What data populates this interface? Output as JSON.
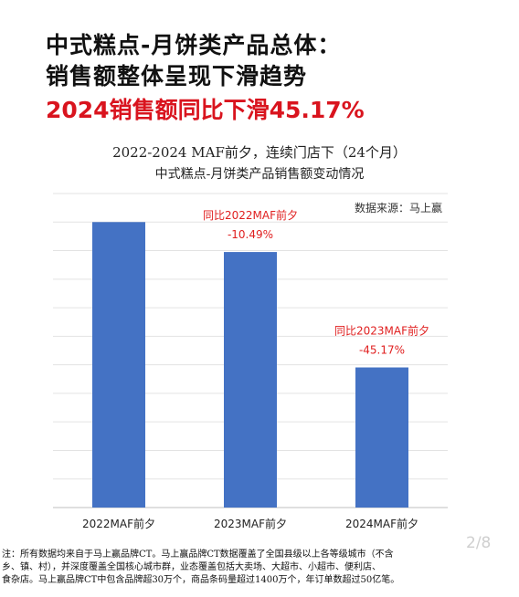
{
  "headline": {
    "line1": "中式糕点-月饼类产品总体：",
    "line2": "销售额整体呈现下滑趋势",
    "line3": "2024销售额同比下滑45.17%"
  },
  "chart_data": {
    "type": "bar",
    "title": "2022-2024 MAF前夕，连续门店下（24个月）",
    "subtitle": "中式糕点-月饼类产品销售额变动情况",
    "source": "数据来源：马上赢",
    "categories": [
      "2022MAF前夕",
      "2023MAF前夕",
      "2024MAF前夕"
    ],
    "values": [
      100,
      89.51,
      49.08
    ],
    "ylim": [
      0,
      110
    ],
    "grid": true,
    "bar_color": "#4472c4",
    "annotations": [
      {
        "category": "2023MAF前夕",
        "line1": "同比2022MAF前夕",
        "line2": "-10.49%"
      },
      {
        "category": "2024MAF前夕",
        "line1": "同比2023MAF前夕",
        "line2": "-45.17%"
      }
    ],
    "annotation_color": "#e02020"
  },
  "footnote": {
    "line1": "注：所有数据均来自于马上赢品牌CT。马上赢品牌CT数据覆盖了全国县级以上各等级城市（不含",
    "line2": "乡、镇、村），并深度覆盖全国核心城市群，业态覆盖包括大卖场、大超市、小超市、便利店、",
    "line3": "食杂店。马上赢品牌CT中包含品牌超30万个，商品条码量超过1400万个，年订单数超过50亿笔。"
  },
  "page_indicator": "2/8"
}
